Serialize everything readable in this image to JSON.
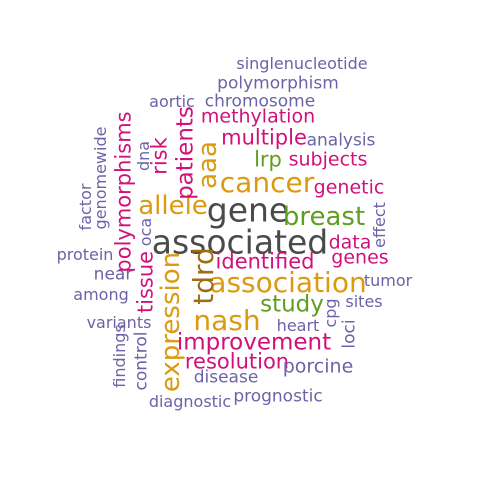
{
  "word_cloud": {
    "words": [
      {
        "text": "singlenucleotide",
        "color": "#6b63a8"
      },
      {
        "text": "polymorphism",
        "color": "#6b63a8"
      },
      {
        "text": "aortic",
        "color": "#6b63a8"
      },
      {
        "text": "chromosome",
        "color": "#6b63a8"
      },
      {
        "text": "methylation",
        "color": "#d1117b"
      },
      {
        "text": "multiple",
        "color": "#d1117b"
      },
      {
        "text": "analysis",
        "color": "#6b63a8"
      },
      {
        "text": "lrp",
        "color": "#5e9e22"
      },
      {
        "text": "subjects",
        "color": "#d1117b"
      },
      {
        "text": "cancer",
        "color": "#dc9a11"
      },
      {
        "text": "genetic",
        "color": "#d1117b"
      },
      {
        "text": "gene",
        "color": "#4a4a4a"
      },
      {
        "text": "allele",
        "color": "#dc9a11"
      },
      {
        "text": "breast",
        "color": "#5e9e22"
      },
      {
        "text": "associated",
        "color": "#4a4a4a"
      },
      {
        "text": "data",
        "color": "#d1117b"
      },
      {
        "text": "genes",
        "color": "#d1117b"
      },
      {
        "text": "identified",
        "color": "#d1117b"
      },
      {
        "text": "association",
        "color": "#dc9a11"
      },
      {
        "text": "tumor",
        "color": "#6b63a8"
      },
      {
        "text": "protein",
        "color": "#6b63a8"
      },
      {
        "text": "near",
        "color": "#6b63a8"
      },
      {
        "text": "among",
        "color": "#6b63a8"
      },
      {
        "text": "study",
        "color": "#5e9e22"
      },
      {
        "text": "sites",
        "color": "#6b63a8"
      },
      {
        "text": "nash",
        "color": "#dc9a11"
      },
      {
        "text": "variants",
        "color": "#6b63a8"
      },
      {
        "text": "heart",
        "color": "#6b63a8"
      },
      {
        "text": "improvement",
        "color": "#d1117b"
      },
      {
        "text": "resolution",
        "color": "#d1117b"
      },
      {
        "text": "porcine",
        "color": "#6b63a8"
      },
      {
        "text": "disease",
        "color": "#6b63a8"
      },
      {
        "text": "diagnostic",
        "color": "#6b63a8"
      },
      {
        "text": "prognostic",
        "color": "#6b63a8"
      },
      {
        "text": "genomewide",
        "color": "#6b63a8"
      },
      {
        "text": "factor",
        "color": "#6b63a8"
      },
      {
        "text": "polymorphisms",
        "color": "#d1117b"
      },
      {
        "text": "dna",
        "color": "#6b63a8"
      },
      {
        "text": "risk",
        "color": "#d1117b"
      },
      {
        "text": "patients",
        "color": "#d1117b"
      },
      {
        "text": "aaa",
        "color": "#dc9a11"
      },
      {
        "text": "oca",
        "color": "#6b63a8"
      },
      {
        "text": "tissue",
        "color": "#d1117b"
      },
      {
        "text": "expression",
        "color": "#dc9a11"
      },
      {
        "text": "tdrd",
        "color": "#9a6f12"
      },
      {
        "text": "findings",
        "color": "#6b63a8"
      },
      {
        "text": "control",
        "color": "#6b63a8"
      },
      {
        "text": "effect",
        "color": "#6b63a8"
      },
      {
        "text": "cpg",
        "color": "#6b63a8"
      },
      {
        "text": "loci",
        "color": "#6b63a8"
      }
    ]
  }
}
